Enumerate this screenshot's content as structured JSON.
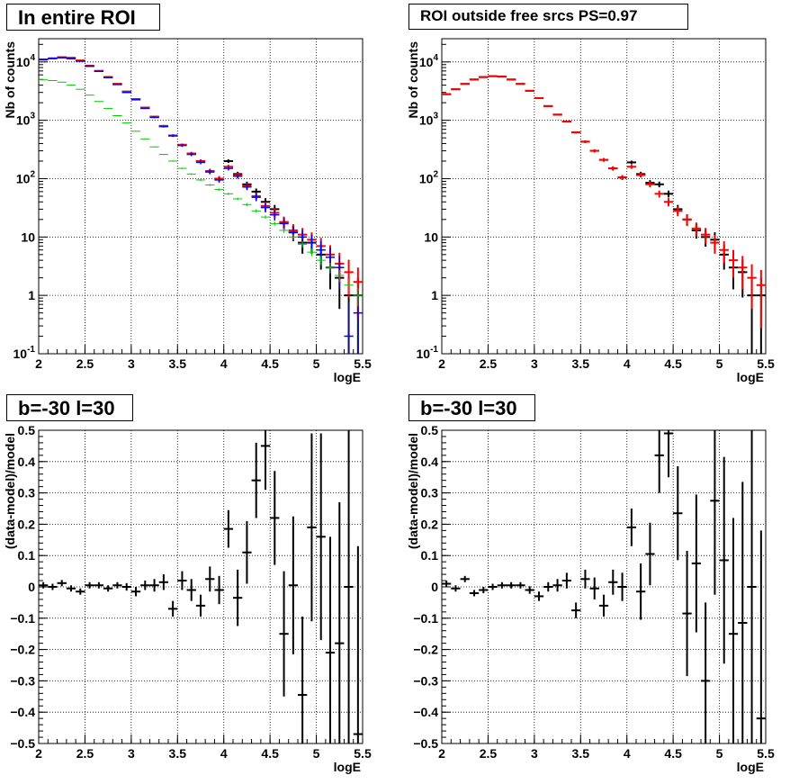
{
  "colors": {
    "data": "#000000",
    "model_total": "#ff0000",
    "component_blue": "#0000ff",
    "component_green": "#00cc00",
    "grid": "#000000",
    "background": "#ffffff"
  },
  "chart_data": [
    {
      "type": "scatter",
      "title": "In entire ROI",
      "xlabel": "logE",
      "ylabel": "Nb of counts",
      "xlim": [
        2,
        5.5
      ],
      "ylim": [
        0.1,
        25000
      ],
      "yscale": "log",
      "xticks": [
        "2",
        "2.5",
        "3",
        "3.5",
        "4",
        "4.5",
        "5",
        "5.5"
      ],
      "yticks": [
        "10^-1",
        "1",
        "10",
        "10^2",
        "10^3",
        "10^4"
      ],
      "grid": true,
      "x": [
        2.05,
        2.15,
        2.25,
        2.35,
        2.45,
        2.55,
        2.65,
        2.75,
        2.85,
        2.95,
        3.05,
        3.15,
        3.25,
        3.35,
        3.45,
        3.55,
        3.65,
        3.75,
        3.85,
        3.95,
        4.05,
        4.15,
        4.25,
        4.35,
        4.45,
        4.55,
        4.65,
        4.75,
        4.85,
        4.95,
        5.05,
        5.15,
        5.25,
        5.35,
        5.45
      ],
      "series": [
        {
          "role": "data",
          "values": [
            11000,
            11500,
            12000,
            11500,
            10500,
            8500,
            7000,
            5500,
            4200,
            3100,
            2300,
            1650,
            1150,
            800,
            550,
            380,
            270,
            200,
            135,
            100,
            200,
            120,
            80,
            60,
            40,
            30,
            18,
            12,
            8,
            8,
            5,
            3,
            2,
            1,
            1
          ]
        },
        {
          "role": "model_total",
          "values": [
            11000,
            11500,
            12000,
            11800,
            10600,
            8600,
            7000,
            5500,
            4200,
            3100,
            2300,
            1650,
            1150,
            800,
            550,
            380,
            270,
            200,
            135,
            100,
            160,
            115,
            75,
            50,
            34,
            26,
            18,
            13,
            11,
            9,
            7,
            5,
            3.5,
            2.5,
            1.7
          ]
        },
        {
          "role": "component_blue",
          "values": [
            11000,
            11500,
            11800,
            11400,
            10300,
            8500,
            6900,
            5400,
            4100,
            3000,
            2250,
            1600,
            1120,
            780,
            540,
            370,
            260,
            190,
            130,
            95,
            150,
            110,
            72,
            48,
            32,
            24,
            17,
            12,
            10,
            8,
            6,
            4.5,
            3,
            0.2,
            0.5
          ]
        },
        {
          "role": "component_green",
          "values": [
            5000,
            4800,
            4500,
            4000,
            3400,
            2700,
            2100,
            1600,
            1200,
            900,
            650,
            480,
            350,
            260,
            200,
            150,
            120,
            95,
            78,
            65,
            55,
            45,
            36,
            28,
            22,
            17,
            13,
            10,
            7.5,
            5.5,
            4,
            3,
            2.2,
            1.5,
            1
          ]
        }
      ]
    },
    {
      "type": "scatter",
      "title": "ROI outside free srcs PS=0.97",
      "xlabel": "logE",
      "ylabel": "Nb of counts",
      "xlim": [
        2,
        5.5
      ],
      "ylim": [
        0.1,
        25000
      ],
      "yscale": "log",
      "xticks": [
        "2",
        "2.5",
        "3",
        "3.5",
        "4",
        "4.5",
        "5",
        "5.5"
      ],
      "yticks": [
        "10^-1",
        "1",
        "10",
        "10^2",
        "10^3",
        "10^4"
      ],
      "grid": true,
      "x": [
        2.05,
        2.15,
        2.25,
        2.35,
        2.45,
        2.55,
        2.65,
        2.75,
        2.85,
        2.95,
        3.05,
        3.15,
        3.25,
        3.35,
        3.45,
        3.55,
        3.65,
        3.75,
        3.85,
        3.95,
        4.05,
        4.15,
        4.25,
        4.35,
        4.45,
        4.55,
        4.65,
        4.75,
        4.85,
        4.95,
        5.05,
        5.15,
        5.25,
        5.35,
        5.45
      ],
      "series": [
        {
          "role": "data",
          "values": [
            2800,
            3400,
            4200,
            5000,
            5500,
            5700,
            5600,
            5000,
            4200,
            3200,
            2400,
            1750,
            1250,
            950,
            620,
            430,
            300,
            210,
            150,
            105,
            190,
            120,
            85,
            80,
            55,
            30,
            20,
            13,
            10,
            9,
            5,
            3,
            2.5,
            1,
            1
          ]
        },
        {
          "role": "model_total",
          "values": [
            2800,
            3400,
            4200,
            5000,
            5500,
            5700,
            5600,
            5000,
            4200,
            3200,
            2400,
            1750,
            1250,
            950,
            620,
            430,
            300,
            210,
            150,
            105,
            160,
            115,
            80,
            55,
            40,
            28,
            20,
            14,
            11,
            8,
            6,
            4,
            3,
            2,
            1.5
          ]
        }
      ]
    },
    {
      "type": "scatter",
      "title": "b=-30 l=30",
      "xlabel": "logE",
      "ylabel": "(data-model)/model",
      "xlim": [
        2,
        5.5
      ],
      "ylim": [
        -0.5,
        0.5
      ],
      "xticks": [
        "2",
        "2.5",
        "3",
        "3.5",
        "4",
        "4.5",
        "5",
        "5.5"
      ],
      "yticks": [
        "-0.5",
        "-0.4",
        "-0.3",
        "-0.2",
        "-0.1",
        "0",
        "0.1",
        "0.2",
        "0.3",
        "0.4",
        "0.5"
      ],
      "grid": true,
      "x": [
        2.05,
        2.15,
        2.25,
        2.35,
        2.45,
        2.55,
        2.65,
        2.75,
        2.85,
        2.95,
        3.05,
        3.15,
        3.25,
        3.35,
        3.45,
        3.55,
        3.65,
        3.75,
        3.85,
        3.95,
        4.05,
        4.15,
        4.25,
        4.35,
        4.45,
        4.55,
        4.65,
        4.75,
        4.85,
        4.95,
        5.05,
        5.15,
        5.25,
        5.35,
        5.45
      ],
      "values": [
        0.005,
        0,
        0.012,
        -0.005,
        -0.015,
        0.005,
        0.005,
        -0.005,
        0.005,
        0,
        -0.015,
        0.005,
        0.005,
        0.015,
        -0.07,
        0.02,
        -0.01,
        -0.06,
        0.025,
        -0.01,
        0.185,
        -0.035,
        0.11,
        0.34,
        0.45,
        0.22,
        -0.15,
        0.005,
        -0.345,
        0.19,
        0.16,
        -0.21,
        -0.18,
        0,
        -0.47
      ],
      "errors": [
        0.01,
        0.01,
        0.01,
        0.01,
        0.01,
        0.01,
        0.01,
        0.01,
        0.01,
        0.012,
        0.015,
        0.015,
        0.02,
        0.025,
        0.025,
        0.03,
        0.035,
        0.035,
        0.04,
        0.045,
        0.06,
        0.09,
        0.1,
        0.12,
        0.14,
        0.15,
        0.2,
        0.22,
        0.25,
        0.3,
        0.33,
        0.37,
        0.45,
        0.55,
        0.6
      ]
    },
    {
      "type": "scatter",
      "title": "b=-30 l=30",
      "xlabel": "logE",
      "ylabel": "(data-model)/model",
      "xlim": [
        2,
        5.5
      ],
      "ylim": [
        -0.5,
        0.5
      ],
      "xticks": [
        "2",
        "2.5",
        "3",
        "3.5",
        "4",
        "4.5",
        "5",
        "5.5"
      ],
      "yticks": [
        "-0.5",
        "-0.4",
        "-0.3",
        "-0.2",
        "-0.1",
        "0",
        "0.1",
        "0.2",
        "0.3",
        "0.4",
        "0.5"
      ],
      "grid": true,
      "x": [
        2.05,
        2.15,
        2.25,
        2.35,
        2.45,
        2.55,
        2.65,
        2.75,
        2.85,
        2.95,
        3.05,
        3.15,
        3.25,
        3.35,
        3.45,
        3.55,
        3.65,
        3.75,
        3.85,
        3.95,
        4.05,
        4.15,
        4.25,
        4.35,
        4.45,
        4.55,
        4.65,
        4.75,
        4.85,
        4.95,
        5.05,
        5.15,
        5.25,
        5.35,
        5.45
      ],
      "values": [
        0.01,
        -0.005,
        0.025,
        -0.02,
        -0.01,
        0,
        0.005,
        0.005,
        0.005,
        -0.01,
        -0.03,
        0,
        0.005,
        0.02,
        -0.075,
        0.025,
        -0.005,
        -0.06,
        0.015,
        0,
        0.19,
        -0.015,
        0.105,
        0.42,
        0.49,
        0.235,
        -0.085,
        0.075,
        -0.3,
        0.275,
        0.085,
        -0.15,
        -0.115,
        0,
        -0.42
      ],
      "errors": [
        0.01,
        0.01,
        0.01,
        0.01,
        0.01,
        0.01,
        0.01,
        0.01,
        0.01,
        0.012,
        0.015,
        0.015,
        0.02,
        0.025,
        0.025,
        0.03,
        0.035,
        0.035,
        0.04,
        0.045,
        0.06,
        0.09,
        0.1,
        0.12,
        0.14,
        0.15,
        0.2,
        0.22,
        0.25,
        0.3,
        0.33,
        0.37,
        0.45,
        0.55,
        0.6
      ]
    }
  ]
}
